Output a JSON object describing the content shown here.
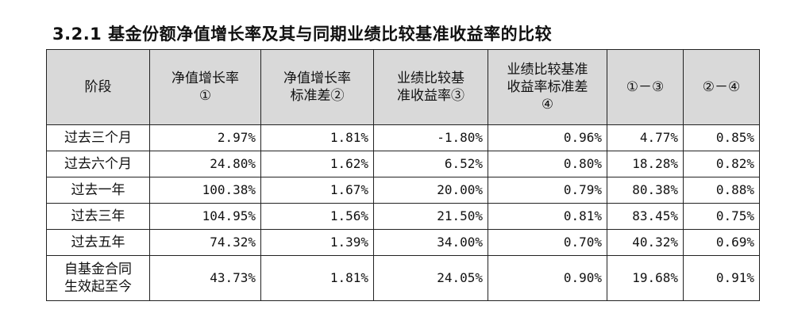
{
  "section_title": "3.2.1 基金份额净值增长率及其与同期业绩比较基准收益率的比较",
  "table": {
    "headers": [
      {
        "line1": "阶段",
        "line2": "",
        "line3": ""
      },
      {
        "line1": "净值增长率",
        "line2": "①",
        "line3": ""
      },
      {
        "line1": "净值增长率",
        "line2": "标准差②",
        "line3": ""
      },
      {
        "line1": "业绩比较基",
        "line2": "准收益率③",
        "line3": ""
      },
      {
        "line1": "业绩比较基准",
        "line2": "收益率标准差",
        "line3": "④"
      },
      {
        "line1": "①－③",
        "line2": "",
        "line3": ""
      },
      {
        "line1": "②－④",
        "line2": "",
        "line3": ""
      }
    ],
    "rows": [
      {
        "period_line1": "过去三个月",
        "period_line2": "",
        "values": [
          "2.97%",
          "1.81%",
          "-1.80%",
          "0.96%",
          "4.77%",
          "0.85%"
        ]
      },
      {
        "period_line1": "过去六个月",
        "period_line2": "",
        "values": [
          "24.80%",
          "1.62%",
          "6.52%",
          "0.80%",
          "18.28%",
          "0.82%"
        ]
      },
      {
        "period_line1": "过去一年",
        "period_line2": "",
        "values": [
          "100.38%",
          "1.67%",
          "20.00%",
          "0.79%",
          "80.38%",
          "0.88%"
        ]
      },
      {
        "period_line1": "过去三年",
        "period_line2": "",
        "values": [
          "104.95%",
          "1.56%",
          "21.50%",
          "0.81%",
          "83.45%",
          "0.75%"
        ]
      },
      {
        "period_line1": "过去五年",
        "period_line2": "",
        "values": [
          "74.32%",
          "1.39%",
          "34.00%",
          "0.70%",
          "40.32%",
          "0.69%"
        ]
      },
      {
        "period_line1": "自基金合同",
        "period_line2": "生效起至今",
        "values": [
          "43.73%",
          "1.81%",
          "24.05%",
          "0.90%",
          "19.68%",
          "0.91%"
        ]
      }
    ]
  }
}
